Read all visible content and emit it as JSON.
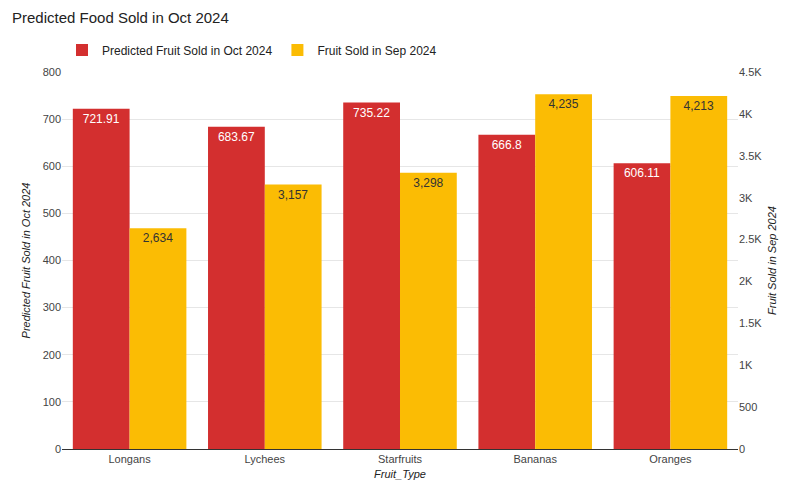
{
  "chart_data": {
    "type": "bar",
    "title": "Predicted Food Sold in Oct 2024",
    "x_label": "Fruit_Type",
    "y_label": "Predicted Fruit Sold in Oct 2024",
    "y2_label": "Fruit Sold in Sep 2024",
    "categories": [
      "Longans",
      "Lychees",
      "Starfruits",
      "Bananas",
      "Oranges"
    ],
    "series": [
      {
        "name": "Predicted Fruit Sold in Oct 2024",
        "color": "#d32f2f",
        "values": [
          721.91,
          683.67,
          735.22,
          666.8,
          606.11
        ]
      },
      {
        "name": "Fruit Sold in Sep 2024",
        "color": "#fbbc04",
        "axis": "y2",
        "values": [
          2634,
          3157,
          3298,
          4235,
          4213
        ],
        "value_labels": [
          "2,634",
          "3,157",
          "3,298",
          "4,235",
          "4,213"
        ]
      }
    ],
    "ylim": [
      0,
      800
    ],
    "yticks": [
      0,
      100,
      200,
      300,
      400,
      500,
      600,
      700,
      800
    ],
    "y2lim": [
      0,
      4500
    ],
    "y2ticks": [
      0,
      500,
      {
        "value": 1000,
        "label": "1K"
      },
      {
        "value": 1500,
        "label": "1.5K"
      },
      {
        "value": 2000,
        "label": "2K"
      },
      {
        "value": 2500,
        "label": "2.5K"
      },
      {
        "value": 3000,
        "label": "3K"
      },
      {
        "value": 3500,
        "label": "3.5K"
      },
      {
        "value": 4000,
        "label": "4K"
      },
      {
        "value": 4500,
        "label": "4.5K"
      }
    ],
    "grid": true,
    "legend": "top-left",
    "data_labels": true
  }
}
